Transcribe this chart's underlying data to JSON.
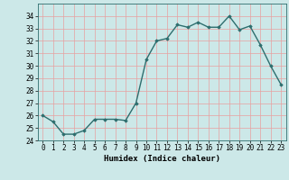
{
  "x": [
    0,
    1,
    2,
    3,
    4,
    5,
    6,
    7,
    8,
    9,
    10,
    11,
    12,
    13,
    14,
    15,
    16,
    17,
    18,
    19,
    20,
    21,
    22,
    23
  ],
  "y": [
    26.0,
    25.5,
    24.5,
    24.5,
    24.8,
    25.7,
    25.7,
    25.7,
    25.6,
    27.0,
    30.5,
    32.0,
    32.2,
    33.3,
    33.1,
    33.5,
    33.1,
    33.1,
    34.0,
    32.9,
    33.2,
    31.7,
    30.0,
    28.5
  ],
  "line_color": "#2d6e6e",
  "marker": "D",
  "marker_size": 1.8,
  "line_width": 1.0,
  "bg_color": "#cce8e8",
  "grid_color": "#e8a0a0",
  "xlabel": "Humidex (Indice chaleur)",
  "ylim": [
    24,
    35
  ],
  "xlim": [
    -0.5,
    23.5
  ],
  "yticks": [
    24,
    25,
    26,
    27,
    28,
    29,
    30,
    31,
    32,
    33,
    34
  ],
  "xticks": [
    0,
    1,
    2,
    3,
    4,
    5,
    6,
    7,
    8,
    9,
    10,
    11,
    12,
    13,
    14,
    15,
    16,
    17,
    18,
    19,
    20,
    21,
    22,
    23
  ],
  "xlabel_fontsize": 6.5,
  "tick_fontsize": 5.5
}
